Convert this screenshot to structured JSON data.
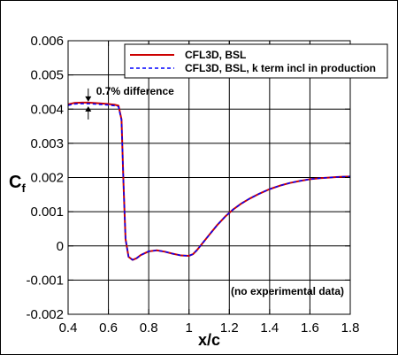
{
  "chart_data": {
    "type": "line",
    "xlabel": "x/c",
    "ylabel": "C",
    "ylabel_sub": "f",
    "xlim": [
      0.4,
      1.8
    ],
    "ylim": [
      -0.002,
      0.006
    ],
    "xticks": [
      0.4,
      0.6,
      0.8,
      1,
      1.2,
      1.4,
      1.6,
      1.8
    ],
    "yticks": [
      -0.002,
      -0.001,
      0,
      0.001,
      0.002,
      0.003,
      0.004,
      0.005,
      0.006
    ],
    "xtick_labels": [
      "0.4",
      "0.6",
      "0.8",
      "1",
      "1.2",
      "1.4",
      "1.6",
      "1.8"
    ],
    "ytick_labels": [
      "-0.002",
      "-0.001",
      "0",
      "0.001",
      "0.002",
      "0.003",
      "0.004",
      "0.005",
      "0.006"
    ],
    "grid": true,
    "legend_position": "top-right",
    "series": [
      {
        "name": "CFL3D, BSL",
        "color": "#cc0000",
        "style": "solid",
        "x": [
          0.4,
          0.43,
          0.47,
          0.5,
          0.55,
          0.6,
          0.63,
          0.65,
          0.665,
          0.675,
          0.685,
          0.7,
          0.72,
          0.74,
          0.76,
          0.8,
          0.84,
          0.88,
          0.92,
          0.96,
          1.0,
          1.02,
          1.04,
          1.07,
          1.1,
          1.14,
          1.18,
          1.22,
          1.26,
          1.3,
          1.35,
          1.4,
          1.45,
          1.5,
          1.55,
          1.6,
          1.65,
          1.7,
          1.75,
          1.8
        ],
        "y": [
          0.00414,
          0.00418,
          0.00419,
          0.00419,
          0.00417,
          0.00415,
          0.00413,
          0.0041,
          0.0037,
          0.0018,
          0.0002,
          -0.00032,
          -0.00041,
          -0.00036,
          -0.00027,
          -0.00016,
          -0.00013,
          -0.00017,
          -0.00023,
          -0.00028,
          -0.00029,
          -0.00024,
          -0.00012,
          0.0001,
          0.00032,
          0.00061,
          0.00086,
          0.00107,
          0.00124,
          0.00138,
          0.00153,
          0.00166,
          0.00176,
          0.00184,
          0.0019,
          0.00195,
          0.00198,
          0.002,
          0.00202,
          0.00203
        ]
      },
      {
        "name": "CFL3D, BSL, k term incl in production",
        "color": "#0000ff",
        "style": "dashed",
        "x": [
          0.4,
          0.43,
          0.47,
          0.5,
          0.55,
          0.6,
          0.63,
          0.65,
          0.665,
          0.675,
          0.685,
          0.7,
          0.72,
          0.74,
          0.76,
          0.8,
          0.84,
          0.88,
          0.92,
          0.96,
          1.0,
          1.02,
          1.04,
          1.07,
          1.1,
          1.14,
          1.18,
          1.22,
          1.26,
          1.3,
          1.35,
          1.4,
          1.45,
          1.5,
          1.55,
          1.6,
          1.65,
          1.7,
          1.75,
          1.8
        ],
        "y": [
          0.00411,
          0.00415,
          0.00416,
          0.00416,
          0.00414,
          0.00412,
          0.0041,
          0.00407,
          0.00367,
          0.0018,
          0.0002,
          -0.00032,
          -0.00041,
          -0.00036,
          -0.00027,
          -0.00016,
          -0.00013,
          -0.00017,
          -0.00023,
          -0.00028,
          -0.00029,
          -0.00024,
          -0.00012,
          0.0001,
          0.00032,
          0.00061,
          0.00086,
          0.00107,
          0.00124,
          0.00138,
          0.00153,
          0.00166,
          0.00176,
          0.00184,
          0.0019,
          0.00195,
          0.00198,
          0.002,
          0.00202,
          0.00203
        ]
      }
    ],
    "annotations": [
      {
        "text": "0.7% difference"
      },
      {
        "text": "(no experimental data)"
      }
    ]
  }
}
